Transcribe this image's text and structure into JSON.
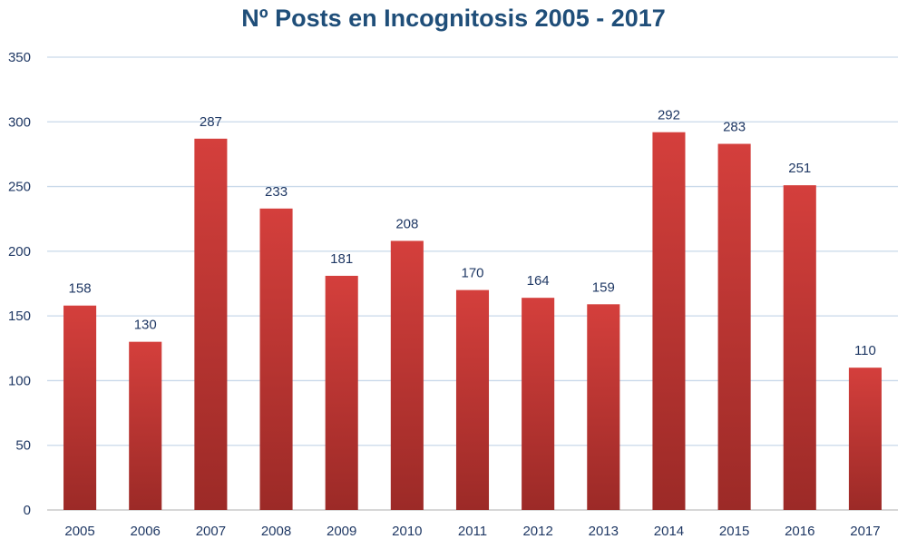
{
  "chart_data": {
    "type": "bar",
    "title": "Nº Posts en Incognitosis 2005 - 2017",
    "xlabel": "",
    "ylabel": "",
    "categories": [
      "2005",
      "2006",
      "2007",
      "2008",
      "2009",
      "2010",
      "2011",
      "2012",
      "2013",
      "2014",
      "2015",
      "2016",
      "2017"
    ],
    "values": [
      158,
      130,
      287,
      233,
      181,
      208,
      170,
      164,
      159,
      292,
      283,
      251,
      110
    ],
    "ylim": [
      0,
      350
    ],
    "yticks": [
      0,
      50,
      100,
      150,
      200,
      250,
      300,
      350
    ],
    "grid": true,
    "legend": "none"
  },
  "colors": {
    "bar_top": "#d43f3c",
    "bar_bottom": "#9c2a27",
    "text": "#1f3864",
    "title": "#1f4e79",
    "grid": "#c9d9ea",
    "axis": "#bfbfbf"
  }
}
